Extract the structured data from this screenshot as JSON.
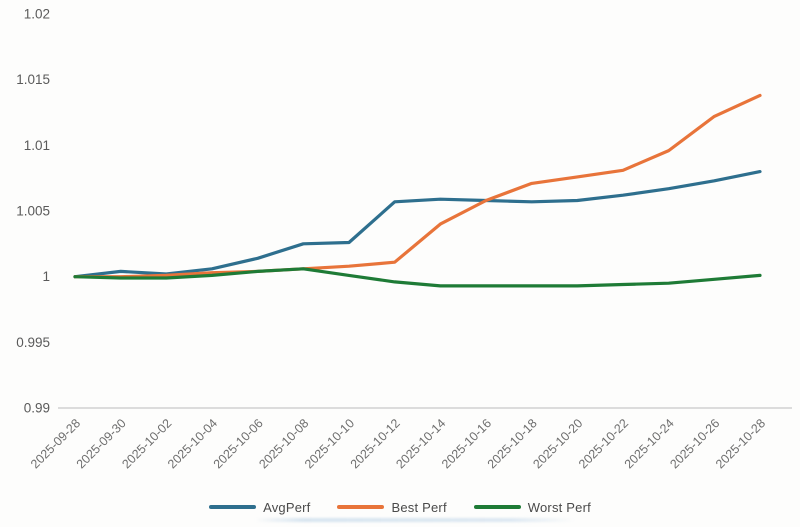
{
  "chart_data": {
    "type": "line",
    "categories": [
      "2025-09-28",
      "2025-09-30",
      "2025-10-02",
      "2025-10-04",
      "2025-10-06",
      "2025-10-08",
      "2025-10-10",
      "2025-10-12",
      "2025-10-14",
      "2025-10-16",
      "2025-10-18",
      "2025-10-20",
      "2025-10-22",
      "2025-10-24",
      "2025-10-26",
      "2025-10-28"
    ],
    "series": [
      {
        "name": "AvgPerf",
        "color": "#2e6f8e",
        "values": [
          1.0,
          1.0004,
          1.0002,
          1.0006,
          1.0014,
          1.0025,
          1.0026,
          1.0057,
          1.0059,
          1.0058,
          1.0057,
          1.0058,
          1.0062,
          1.0067,
          1.0073,
          1.008
        ]
      },
      {
        "name": "Best Perf",
        "color": "#e8743a",
        "values": [
          1.0,
          1.0,
          1.0001,
          1.0003,
          1.0004,
          1.0006,
          1.0008,
          1.0011,
          1.004,
          1.0058,
          1.0071,
          1.0076,
          1.0081,
          1.0096,
          1.0122,
          1.0138
        ]
      },
      {
        "name": "Worst Perf",
        "color": "#1e7b36",
        "values": [
          1.0,
          0.9999,
          0.9999,
          1.0001,
          1.0004,
          1.0006,
          1.0001,
          0.9996,
          0.9993,
          0.9993,
          0.9993,
          0.9993,
          0.9994,
          0.9995,
          0.9998,
          1.0001
        ]
      }
    ],
    "title": "",
    "xlabel": "",
    "ylabel": "",
    "ylim": [
      0.99,
      1.02
    ],
    "yticks": [
      {
        "value": 1.02,
        "label": "1.02"
      },
      {
        "value": 1.015,
        "label": "1.015"
      },
      {
        "value": 1.01,
        "label": "1.01"
      },
      {
        "value": 1.005,
        "label": "1.005"
      },
      {
        "value": 1.0,
        "label": "1"
      },
      {
        "value": 0.995,
        "label": "0.995"
      },
      {
        "value": 0.99,
        "label": "0.99"
      }
    ],
    "grid": "baseline-only",
    "baseline_value": 0.99,
    "gridline_color": "#d2d2d2",
    "legend_position": "bottom"
  }
}
